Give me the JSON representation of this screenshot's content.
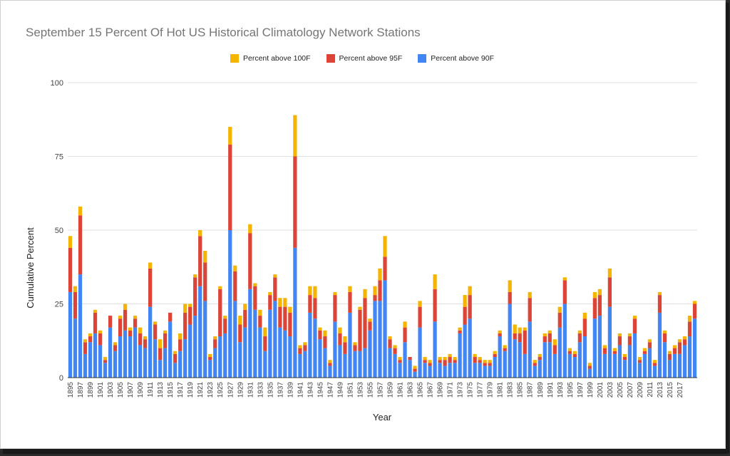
{
  "chart_data": {
    "type": "bar",
    "stacked": true,
    "title": "September 15 Percent Of Hot US Historical Climatology Network Stations",
    "xlabel": "Year",
    "ylabel": "Cumulative Percent",
    "ylim": [
      0,
      100
    ],
    "yticks": [
      0,
      25,
      50,
      75,
      100
    ],
    "grid": true,
    "legend_position": "top",
    "x_start": 1895,
    "x_end": 2018,
    "x_tick_labels": [
      "1895",
      "1897",
      "1899",
      "1901",
      "1903",
      "1905",
      "1907",
      "1909",
      "1911",
      "1913",
      "1915",
      "1917",
      "1919",
      "1921",
      "1923",
      "1925",
      "1927",
      "1929",
      "1931",
      "1933",
      "1935",
      "1937",
      "1939",
      "1941",
      "1943",
      "1945",
      "1947",
      "1949",
      "1951",
      "1953",
      "1955",
      "1957",
      "1959",
      "1961",
      "1963",
      "1965",
      "1967",
      "1969",
      "1971",
      "1973",
      "1975",
      "1977",
      "1979",
      "1981",
      "1983",
      "1985",
      "1987",
      "1989",
      "1991",
      "1993",
      "1995",
      "1997",
      "1999",
      "2001",
      "2003",
      "2005",
      "2007",
      "2009",
      "2011",
      "2013",
      "2015",
      "2017"
    ],
    "series": [
      {
        "name": "Percent above 90F",
        "color": "#4285f4",
        "values": [
          29,
          20,
          35,
          8,
          12,
          15,
          11,
          5,
          17,
          9,
          14,
          16,
          14,
          17,
          11,
          10,
          24,
          13,
          6,
          10,
          19,
          5,
          9,
          13,
          18,
          21,
          31,
          26,
          6,
          10,
          14,
          15,
          50,
          26,
          12,
          17,
          30,
          23,
          17,
          9,
          23,
          26,
          17,
          16,
          14,
          44,
          8,
          9,
          22,
          20,
          13,
          10,
          4,
          19,
          11,
          8,
          22,
          9,
          9,
          10,
          16,
          26,
          26,
          33,
          10,
          8,
          5,
          12,
          6,
          2,
          17,
          5,
          4,
          19,
          5,
          4,
          5,
          5,
          15,
          18,
          20,
          5,
          5,
          4,
          4,
          7,
          14,
          9,
          25,
          13,
          12,
          8,
          19,
          4,
          6,
          12,
          12,
          8,
          17,
          25,
          8,
          7,
          12,
          14,
          3,
          20,
          21,
          8,
          24,
          8,
          11,
          6,
          11,
          15,
          5,
          8,
          10,
          4,
          22,
          12,
          6,
          8,
          8,
          11,
          14,
          20
        ]
      },
      {
        "name": "Percent above 95F",
        "color": "#db4437",
        "values": [
          15,
          9,
          20,
          4,
          2,
          7,
          4,
          1,
          4,
          2,
          6,
          7,
          2,
          3,
          4,
          3,
          13,
          5,
          4,
          5,
          3,
          3,
          4,
          9,
          6,
          13,
          17,
          13,
          1,
          3,
          16,
          5,
          29,
          10,
          6,
          6,
          19,
          8,
          4,
          5,
          5,
          8,
          7,
          8,
          8,
          31,
          2,
          2,
          6,
          7,
          3,
          4,
          1,
          9,
          4,
          4,
          7,
          2,
          14,
          17,
          3,
          2,
          7,
          8,
          3,
          2,
          1,
          5,
          1,
          1,
          7,
          1,
          1,
          11,
          1,
          2,
          2,
          1,
          1,
          6,
          8,
          2,
          1,
          1,
          1,
          1,
          1,
          1,
          4,
          2,
          3,
          8,
          8,
          1,
          1,
          2,
          3,
          3,
          5,
          8,
          1,
          1,
          3,
          6,
          1,
          7,
          7,
          2,
          10,
          1,
          3,
          1,
          3,
          5,
          1,
          1,
          2,
          1,
          6,
          3,
          2,
          2,
          4,
          2,
          5,
          5
        ]
      },
      {
        "name": "Percent above 100F",
        "color": "#f4b400",
        "values": [
          4,
          2,
          3,
          1,
          1,
          1,
          1,
          1,
          0,
          1,
          1,
          2,
          1,
          1,
          2,
          1,
          2,
          1,
          3,
          1,
          0,
          1,
          2,
          3,
          1,
          1,
          2,
          4,
          1,
          1,
          1,
          1,
          6,
          2,
          3,
          2,
          3,
          1,
          2,
          3,
          1,
          1,
          3,
          3,
          2,
          14,
          1,
          1,
          3,
          4,
          1,
          2,
          1,
          1,
          2,
          2,
          2,
          1,
          1,
          3,
          1,
          3,
          4,
          7,
          1,
          1,
          1,
          2,
          0,
          1,
          2,
          1,
          1,
          5,
          1,
          1,
          1,
          1,
          1,
          4,
          3,
          1,
          1,
          1,
          1,
          1,
          1,
          1,
          4,
          3,
          2,
          1,
          2,
          1,
          1,
          1,
          1,
          2,
          2,
          1,
          1,
          1,
          1,
          2,
          1,
          2,
          2,
          1,
          3,
          1,
          1,
          1,
          1,
          1,
          1,
          1,
          1,
          1,
          1,
          1,
          1,
          1,
          1,
          1,
          2,
          1
        ]
      }
    ]
  }
}
